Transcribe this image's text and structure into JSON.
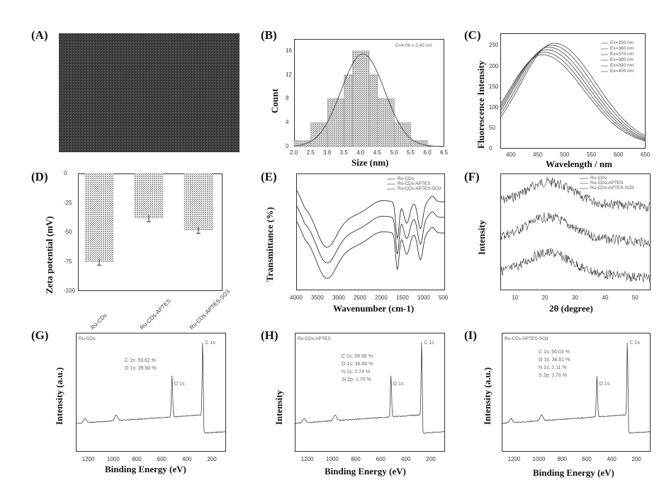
{
  "figure": {
    "panel_labels": [
      "(A)",
      "(B)",
      "(C)",
      "(D)",
      "(E)",
      "(F)",
      "(G)",
      "(H)",
      "(I)"
    ]
  },
  "chart_data": [
    {
      "id": "B",
      "type": "bar",
      "title": "",
      "annotation": "D=4.06 ± 0.65 nm",
      "xlabel": "Size (nm)",
      "ylabel": "Count",
      "xticks": [
        "2.0",
        "2.5",
        "3.0",
        "3.5",
        "4.0",
        "4.5",
        "5.0",
        "5.5",
        "6.0",
        "6.5"
      ],
      "yticks": [
        "0",
        "4",
        "8",
        "12",
        "16"
      ],
      "xlim": [
        2.0,
        6.5
      ],
      "ylim": [
        0,
        18
      ],
      "bins": [
        [
          2.0,
          2.5,
          1
        ],
        [
          2.5,
          3.0,
          4
        ],
        [
          3.0,
          3.5,
          8
        ],
        [
          3.5,
          3.75,
          12
        ],
        [
          3.75,
          4.25,
          16
        ],
        [
          4.25,
          4.5,
          12
        ],
        [
          4.5,
          5.0,
          8
        ],
        [
          5.0,
          5.5,
          4
        ],
        [
          5.5,
          6.0,
          1
        ]
      ],
      "fit_center": 4.06,
      "fit_sigma": 0.65
    },
    {
      "id": "C",
      "type": "line",
      "xlabel": "Wavelength / nm",
      "ylabel": "Fluorescence Intensity",
      "xticks": [
        "400",
        "450",
        "500",
        "550",
        "600",
        "650"
      ],
      "yticks": [
        "0",
        "50",
        "100",
        "150",
        "200",
        "250"
      ],
      "xlim": [
        380,
        650
      ],
      "ylim": [
        0,
        280
      ],
      "series": [
        {
          "name": "Ex=350 nm",
          "peak_x": 458,
          "peak_y": 220
        },
        {
          "name": "Ex=360 nm",
          "peak_x": 462,
          "peak_y": 226
        },
        {
          "name": "Ex=370 nm",
          "peak_x": 466,
          "peak_y": 232
        },
        {
          "name": "Ex=380 nm",
          "peak_x": 470,
          "peak_y": 238
        },
        {
          "name": "Ex=390 nm",
          "peak_x": 475,
          "peak_y": 243
        },
        {
          "name": "Ex=400 nm",
          "peak_x": 480,
          "peak_y": 248
        }
      ]
    },
    {
      "id": "D",
      "type": "bar",
      "xlabel": "",
      "ylabel": "Zeta potential (mV)",
      "categories": [
        "Ru-CDs",
        "Ru-CDs-APTES",
        "Ru-CDs-APTES-SO3"
      ],
      "values": [
        -75,
        -38,
        -48
      ],
      "yticks": [
        "0",
        "-25",
        "-50",
        "-75",
        "-100"
      ],
      "ylim": [
        -100,
        0
      ]
    },
    {
      "id": "E",
      "type": "line",
      "xlabel": "Wavenumber (cm-1)",
      "ylabel": "Transmittance (%)",
      "xticks": [
        "4000",
        "3500",
        "3000",
        "2500",
        "2000",
        "1500",
        "1000",
        "500"
      ],
      "xlim": [
        4000,
        500
      ],
      "series": [
        {
          "name": "Ru-CDs"
        },
        {
          "name": "Ru-CDs-APTES"
        },
        {
          "name": "Ru-CDs-APTES-SO3"
        }
      ]
    },
    {
      "id": "F",
      "type": "line",
      "xlabel": "2θ (degree)",
      "ylabel": "Intensity",
      "xticks": [
        "10",
        "20",
        "30",
        "40",
        "50"
      ],
      "xlim": [
        5,
        55
      ],
      "peak_2theta": 21,
      "series": [
        {
          "name": "Ru-CDs"
        },
        {
          "name": "Ru-CDs-APTES"
        },
        {
          "name": "Ru-CDs-APTES-SO3"
        }
      ]
    },
    {
      "id": "G",
      "type": "line",
      "xlabel": "Binding Energy (eV)",
      "ylabel": "Intensity (a.u.)",
      "xticks": [
        "1200",
        "1000",
        "800",
        "600",
        "400",
        "200"
      ],
      "xlim": [
        1300,
        100
      ],
      "legend": "Ru-CDs",
      "annotations": [
        "C 1s: 59.62 %",
        "O 1s: 39.90 %"
      ],
      "peaks": [
        {
          "label": "C 1s",
          "x": 285
        },
        {
          "label": "O 1s",
          "x": 532
        }
      ]
    },
    {
      "id": "H",
      "type": "line",
      "xlabel": "Binding Energy (eV)",
      "ylabel": "Intensity",
      "xticks": [
        "1200",
        "1000",
        "800",
        "600",
        "400",
        "200"
      ],
      "xlim": [
        1300,
        100
      ],
      "legend": "Ru-CDs-APTES",
      "annotations": [
        "C 1s: 59.88 %",
        "O 1s: 36.68 %",
        "N 1s: 1.74 %",
        "Si 2p: 1.70 %"
      ],
      "peaks": [
        {
          "label": "C 1s",
          "x": 285
        },
        {
          "label": "O 1s",
          "x": 532
        }
      ]
    },
    {
      "id": "I",
      "type": "line",
      "xlabel": "Binding Energy (eV)",
      "ylabel": "Intensity (a.u.)",
      "xticks": [
        "1200",
        "1000",
        "800",
        "600",
        "400",
        "200"
      ],
      "xlim": [
        1300,
        100
      ],
      "legend": "Ru-CDs-APTES-SO3",
      "annotations": [
        "C 1s: 56.03 %",
        "O 1s: 36.61 %",
        "N 1s: 2.11 %",
        "S 2p: 1.76 %"
      ],
      "peaks": [
        {
          "label": "C 1s",
          "x": 285
        },
        {
          "label": "O 1s",
          "x": 532
        }
      ]
    }
  ]
}
